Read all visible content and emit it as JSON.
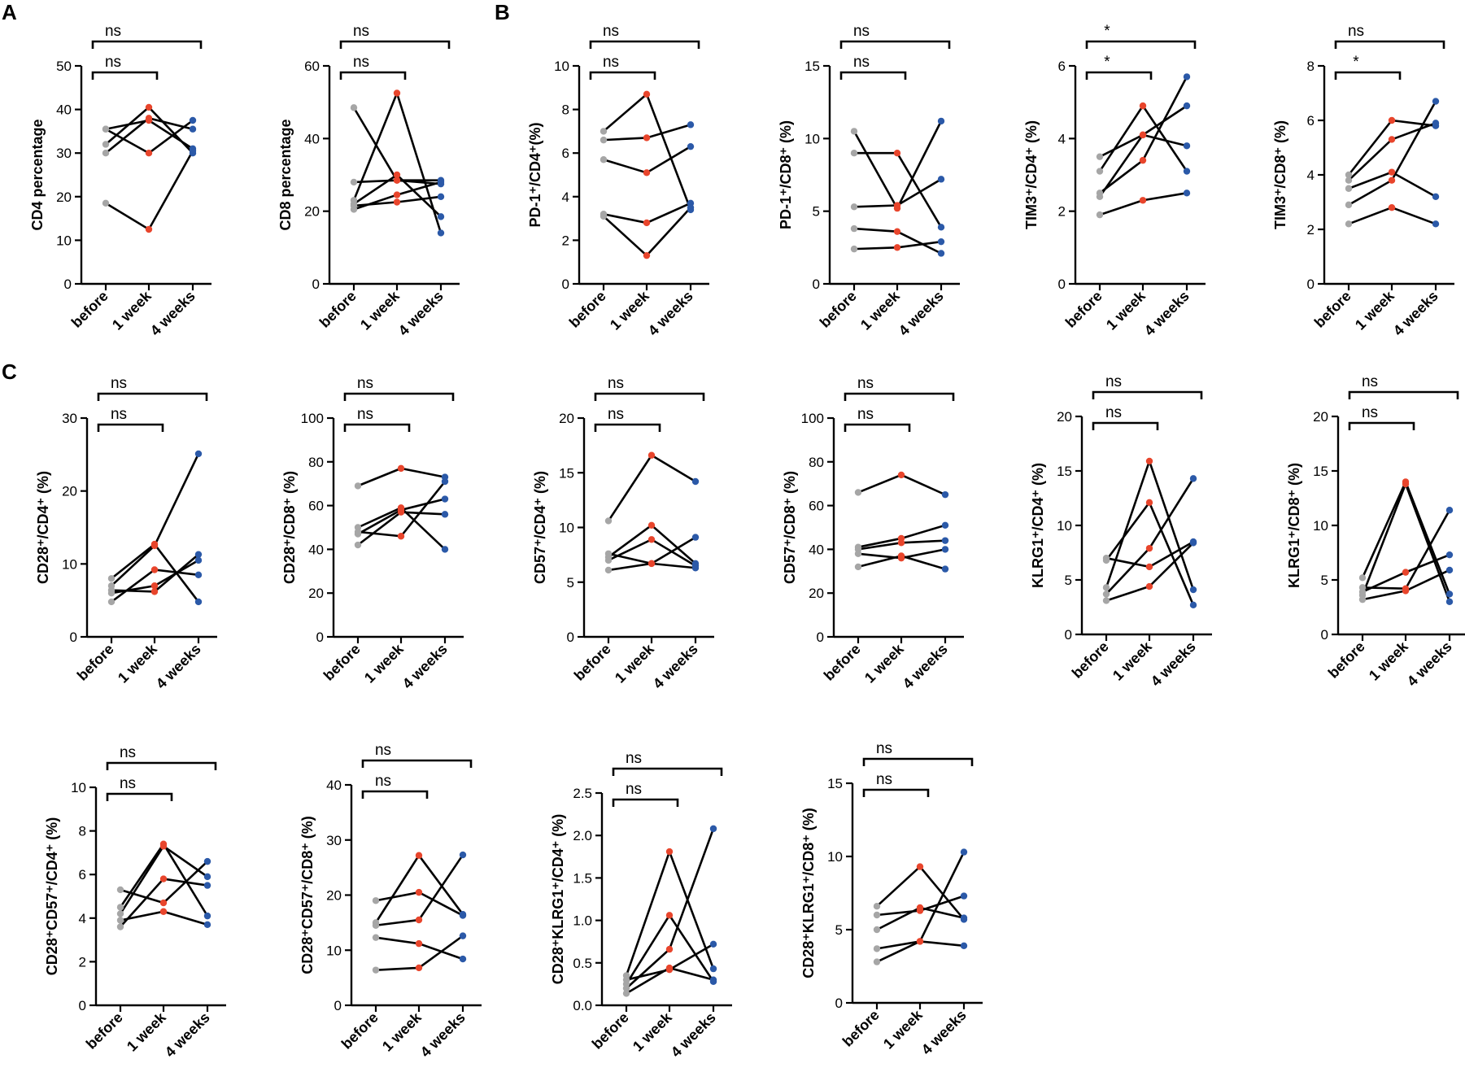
{
  "colors": {
    "before": "#a6a6a6",
    "week1": "#e8452c",
    "week4": "#2b59a8",
    "line": "#000000"
  },
  "panel_letters": [
    "A",
    "B",
    "C"
  ],
  "chart_data": [
    {
      "id": "cd4",
      "type": "line",
      "ylabel": "CD4 percentage",
      "ylim": [
        0,
        50
      ],
      "yticks": [
        "0",
        "10",
        "20",
        "30",
        "40",
        "50"
      ],
      "categories": [
        "before",
        "1 week",
        "4 weeks"
      ],
      "series": [
        [
          35.5,
          37.5,
          31
        ],
        [
          32,
          40.5,
          30
        ],
        [
          30,
          38,
          35.5
        ],
        [
          35.5,
          30,
          37.5
        ],
        [
          18.5,
          12.5,
          30.5
        ]
      ],
      "sig": [
        {
          "label": "ns",
          "span": [
            0,
            1
          ]
        },
        {
          "label": "ns",
          "span": [
            0,
            2
          ]
        }
      ]
    },
    {
      "id": "cd8",
      "type": "line",
      "ylabel": "CD8 percentage",
      "ylim": [
        0,
        60
      ],
      "yticks": [
        "0",
        "20",
        "40",
        "60"
      ],
      "categories": [
        "before",
        "1 week",
        "4 weeks"
      ],
      "series": [
        [
          48.5,
          28.5,
          27.5
        ],
        [
          28,
          28.5,
          28.5
        ],
        [
          23,
          52.5,
          14
        ],
        [
          22,
          30,
          18.5
        ],
        [
          20.5,
          24.5,
          28
        ],
        [
          21.5,
          22.5,
          24
        ]
      ],
      "sig": [
        {
          "label": "ns",
          "span": [
            0,
            1
          ]
        },
        {
          "label": "ns",
          "span": [
            0,
            2
          ]
        }
      ]
    },
    {
      "id": "pd1cd4",
      "type": "line",
      "ylabel": "PD-1⁺/CD4⁺(%)",
      "ylim": [
        0,
        10
      ],
      "yticks": [
        "0",
        "2",
        "4",
        "6",
        "8",
        "10"
      ],
      "categories": [
        "before",
        "1 week",
        "4 weeks"
      ],
      "series": [
        [
          7.0,
          8.7,
          3.4
        ],
        [
          6.6,
          6.7,
          7.3
        ],
        [
          5.7,
          5.1,
          6.3
        ],
        [
          3.2,
          2.8,
          3.7
        ],
        [
          3.1,
          1.3,
          3.5
        ]
      ],
      "sig": [
        {
          "label": "ns",
          "span": [
            0,
            1
          ]
        },
        {
          "label": "ns",
          "span": [
            0,
            2
          ]
        }
      ]
    },
    {
      "id": "pd1cd8",
      "type": "line",
      "ylabel": "PD-1⁺/CD8⁺ (%)",
      "ylim": [
        0,
        15
      ],
      "yticks": [
        "0",
        "5",
        "10",
        "15"
      ],
      "categories": [
        "before",
        "1 week",
        "4 weeks"
      ],
      "series": [
        [
          10.5,
          5.2,
          11.2
        ],
        [
          9.0,
          9.0,
          3.9
        ],
        [
          5.3,
          5.4,
          7.2
        ],
        [
          3.8,
          3.6,
          2.1
        ],
        [
          2.4,
          2.5,
          2.9
        ]
      ],
      "sig": [
        {
          "label": "ns",
          "span": [
            0,
            1
          ]
        },
        {
          "label": "ns",
          "span": [
            0,
            2
          ]
        }
      ]
    },
    {
      "id": "tim3cd4",
      "type": "line",
      "ylabel": "TIM3⁺/CD4⁺ (%)",
      "ylim": [
        0,
        6
      ],
      "yticks": [
        "0",
        "2",
        "4",
        "6"
      ],
      "categories": [
        "before",
        "1 week",
        "4 weeks"
      ],
      "series": [
        [
          3.5,
          4.1,
          3.8
        ],
        [
          3.1,
          4.9,
          3.1
        ],
        [
          2.5,
          3.4,
          5.7
        ],
        [
          2.4,
          4.1,
          4.9
        ],
        [
          1.9,
          2.3,
          2.5
        ]
      ],
      "sig": [
        {
          "label": "*",
          "span": [
            0,
            1
          ]
        },
        {
          "label": "*",
          "span": [
            0,
            2
          ]
        }
      ]
    },
    {
      "id": "tim3cd8",
      "type": "line",
      "ylabel": "TIM3⁺/CD8⁺ (%)",
      "ylim": [
        0,
        8
      ],
      "yticks": [
        "0",
        "2",
        "4",
        "6",
        "8"
      ],
      "categories": [
        "before",
        "1 week",
        "4 weeks"
      ],
      "series": [
        [
          4.0,
          6.0,
          5.8
        ],
        [
          3.8,
          5.3,
          5.9
        ],
        [
          3.5,
          4.1,
          3.2
        ],
        [
          2.9,
          3.8,
          6.7
        ],
        [
          2.2,
          2.8,
          2.2
        ]
      ],
      "sig": [
        {
          "label": "*",
          "span": [
            0,
            1
          ]
        },
        {
          "label": "ns",
          "span": [
            0,
            2
          ]
        }
      ]
    },
    {
      "id": "cd28cd4",
      "type": "line",
      "ylabel": "CD28⁺/CD4⁺ (%)",
      "ylim": [
        0,
        30
      ],
      "yticks": [
        "0",
        "10",
        "20",
        "30"
      ],
      "categories": [
        "before",
        "1 week",
        "4 weeks"
      ],
      "series": [
        [
          8.0,
          12.7,
          4.8
        ],
        [
          7.0,
          12.5,
          25.1
        ],
        [
          6.4,
          6.2,
          11.3
        ],
        [
          6.0,
          7.0,
          10.5
        ],
        [
          4.8,
          9.2,
          8.5
        ]
      ],
      "sig": [
        {
          "label": "ns",
          "span": [
            0,
            1
          ]
        },
        {
          "label": "ns",
          "span": [
            0,
            2
          ]
        }
      ]
    },
    {
      "id": "cd28cd8",
      "type": "line",
      "ylabel": "CD28⁺/CD8⁺ (%)",
      "ylim": [
        0,
        100
      ],
      "yticks": [
        "0",
        "20",
        "40",
        "60",
        "80",
        "100"
      ],
      "categories": [
        "before",
        "1 week",
        "4 weeks"
      ],
      "series": [
        [
          69,
          77,
          73
        ],
        [
          50,
          59,
          40
        ],
        [
          48,
          46,
          71
        ],
        [
          47,
          58,
          63
        ],
        [
          42,
          57,
          56
        ]
      ],
      "sig": [
        {
          "label": "ns",
          "span": [
            0,
            1
          ]
        },
        {
          "label": "ns",
          "span": [
            0,
            2
          ]
        }
      ]
    },
    {
      "id": "cd57cd4",
      "type": "line",
      "ylabel": "CD57⁺/CD4⁺ (%)",
      "ylim": [
        0,
        20
      ],
      "yticks": [
        "0",
        "5",
        "10",
        "15",
        "20"
      ],
      "categories": [
        "before",
        "1 week",
        "4 weeks"
      ],
      "series": [
        [
          10.6,
          16.6,
          14.2
        ],
        [
          7.6,
          6.7,
          6.3
        ],
        [
          7.3,
          10.2,
          6.7
        ],
        [
          7.0,
          8.9,
          6.5
        ],
        [
          6.1,
          6.7,
          9.1
        ]
      ],
      "sig": [
        {
          "label": "ns",
          "span": [
            0,
            1
          ]
        },
        {
          "label": "ns",
          "span": [
            0,
            2
          ]
        }
      ]
    },
    {
      "id": "cd57cd8",
      "type": "line",
      "ylabel": "CD57⁺/CD8⁺ (%)",
      "ylim": [
        0,
        100
      ],
      "yticks": [
        "0",
        "20",
        "40",
        "60",
        "80",
        "100"
      ],
      "categories": [
        "before",
        "1 week",
        "4 weeks"
      ],
      "series": [
        [
          66,
          74,
          65
        ],
        [
          41,
          45,
          51
        ],
        [
          40,
          43,
          44
        ],
        [
          38,
          36,
          40
        ],
        [
          32,
          37,
          31
        ]
      ],
      "sig": [
        {
          "label": "ns",
          "span": [
            0,
            1
          ]
        },
        {
          "label": "ns",
          "span": [
            0,
            2
          ]
        }
      ]
    },
    {
      "id": "klrg1cd4",
      "type": "line",
      "ylabel": "KLRG1⁺/CD4⁺ (%)",
      "ylim": [
        0,
        20
      ],
      "yticks": [
        "0",
        "5",
        "10",
        "15",
        "20"
      ],
      "categories": [
        "before",
        "1 week",
        "4 weeks"
      ],
      "series": [
        [
          7.0,
          6.2,
          8.5
        ],
        [
          6.8,
          12.1,
          2.7
        ],
        [
          4.3,
          15.9,
          4.1
        ],
        [
          3.7,
          7.9,
          14.3
        ],
        [
          3.1,
          4.4,
          8.4
        ]
      ],
      "sig": [
        {
          "label": "ns",
          "span": [
            0,
            1
          ]
        },
        {
          "label": "ns",
          "span": [
            0,
            2
          ]
        }
      ]
    },
    {
      "id": "klrg1cd8",
      "type": "line",
      "ylabel": "KLRG1⁺/CD8⁺ (%)",
      "ylim": [
        0,
        20
      ],
      "yticks": [
        "0",
        "5",
        "10",
        "15",
        "20"
      ],
      "categories": [
        "before",
        "1 week",
        "4 weeks"
      ],
      "series": [
        [
          5.2,
          14.0,
          3.7
        ],
        [
          4.3,
          4.2,
          11.4
        ],
        [
          3.9,
          5.7,
          7.3
        ],
        [
          3.6,
          13.8,
          3.0
        ],
        [
          3.2,
          4.0,
          5.9
        ]
      ],
      "sig": [
        {
          "label": "ns",
          "span": [
            0,
            1
          ]
        },
        {
          "label": "ns",
          "span": [
            0,
            2
          ]
        }
      ]
    },
    {
      "id": "cd28cd57cd4",
      "type": "line",
      "ylabel": "CD28⁺CD57⁺/CD4⁺ (%)",
      "ylim": [
        0,
        10
      ],
      "yticks": [
        "0",
        "2",
        "4",
        "6",
        "8",
        "10"
      ],
      "categories": [
        "before",
        "1 week",
        "4 weeks"
      ],
      "series": [
        [
          5.3,
          4.7,
          6.6
        ],
        [
          4.5,
          7.4,
          4.1
        ],
        [
          4.2,
          7.3,
          5.9
        ],
        [
          3.9,
          4.3,
          3.7
        ],
        [
          3.6,
          5.8,
          5.5
        ]
      ],
      "sig": [
        {
          "label": "ns",
          "span": [
            0,
            1
          ]
        },
        {
          "label": "ns",
          "span": [
            0,
            2
          ]
        }
      ]
    },
    {
      "id": "cd28cd57cd8",
      "type": "line",
      "ylabel": "CD28⁺CD57⁺/CD8⁺ (%)",
      "ylim": [
        0,
        40
      ],
      "yticks": [
        "0",
        "10",
        "20",
        "30",
        "40"
      ],
      "categories": [
        "before",
        "1 week",
        "4 weeks"
      ],
      "series": [
        [
          19,
          20.5,
          16.3
        ],
        [
          15,
          27.2,
          16.5
        ],
        [
          14.5,
          15.5,
          27.3
        ],
        [
          12.3,
          11.2,
          8.4
        ],
        [
          6.4,
          6.8,
          12.6
        ]
      ],
      "sig": [
        {
          "label": "ns",
          "span": [
            0,
            1
          ]
        },
        {
          "label": "ns",
          "span": [
            0,
            2
          ]
        }
      ]
    },
    {
      "id": "cd28klrg1cd4",
      "type": "line",
      "ylabel": "CD28⁺KLRG1⁺/CD4⁺ (%)",
      "ylim": [
        0,
        2.5
      ],
      "yticks": [
        "0.0",
        "0.5",
        "1.0",
        "1.5",
        "2.0",
        "2.5"
      ],
      "categories": [
        "before",
        "1 week",
        "4 weeks"
      ],
      "series": [
        [
          0.35,
          1.81,
          0.43
        ],
        [
          0.3,
          0.42,
          0.72
        ],
        [
          0.25,
          1.06,
          0.28
        ],
        [
          0.2,
          0.66,
          2.08
        ],
        [
          0.14,
          0.44,
          0.3
        ]
      ],
      "sig": [
        {
          "label": "ns",
          "span": [
            0,
            1
          ]
        },
        {
          "label": "ns",
          "span": [
            0,
            2
          ]
        }
      ]
    },
    {
      "id": "cd28klrg1cd8",
      "type": "line",
      "ylabel": "CD28⁺KLRG1⁺/CD8⁺ (%)",
      "ylim": [
        0,
        15
      ],
      "yticks": [
        "0",
        "5",
        "10",
        "15"
      ],
      "categories": [
        "before",
        "1 week",
        "4 weeks"
      ],
      "series": [
        [
          6.6,
          9.3,
          5.7
        ],
        [
          6.0,
          6.3,
          7.3
        ],
        [
          5.0,
          6.5,
          5.8
        ],
        [
          3.7,
          4.2,
          10.3
        ],
        [
          2.8,
          4.2,
          3.9
        ]
      ],
      "sig": [
        {
          "label": "ns",
          "span": [
            0,
            1
          ]
        },
        {
          "label": "ns",
          "span": [
            0,
            2
          ]
        }
      ]
    }
  ]
}
